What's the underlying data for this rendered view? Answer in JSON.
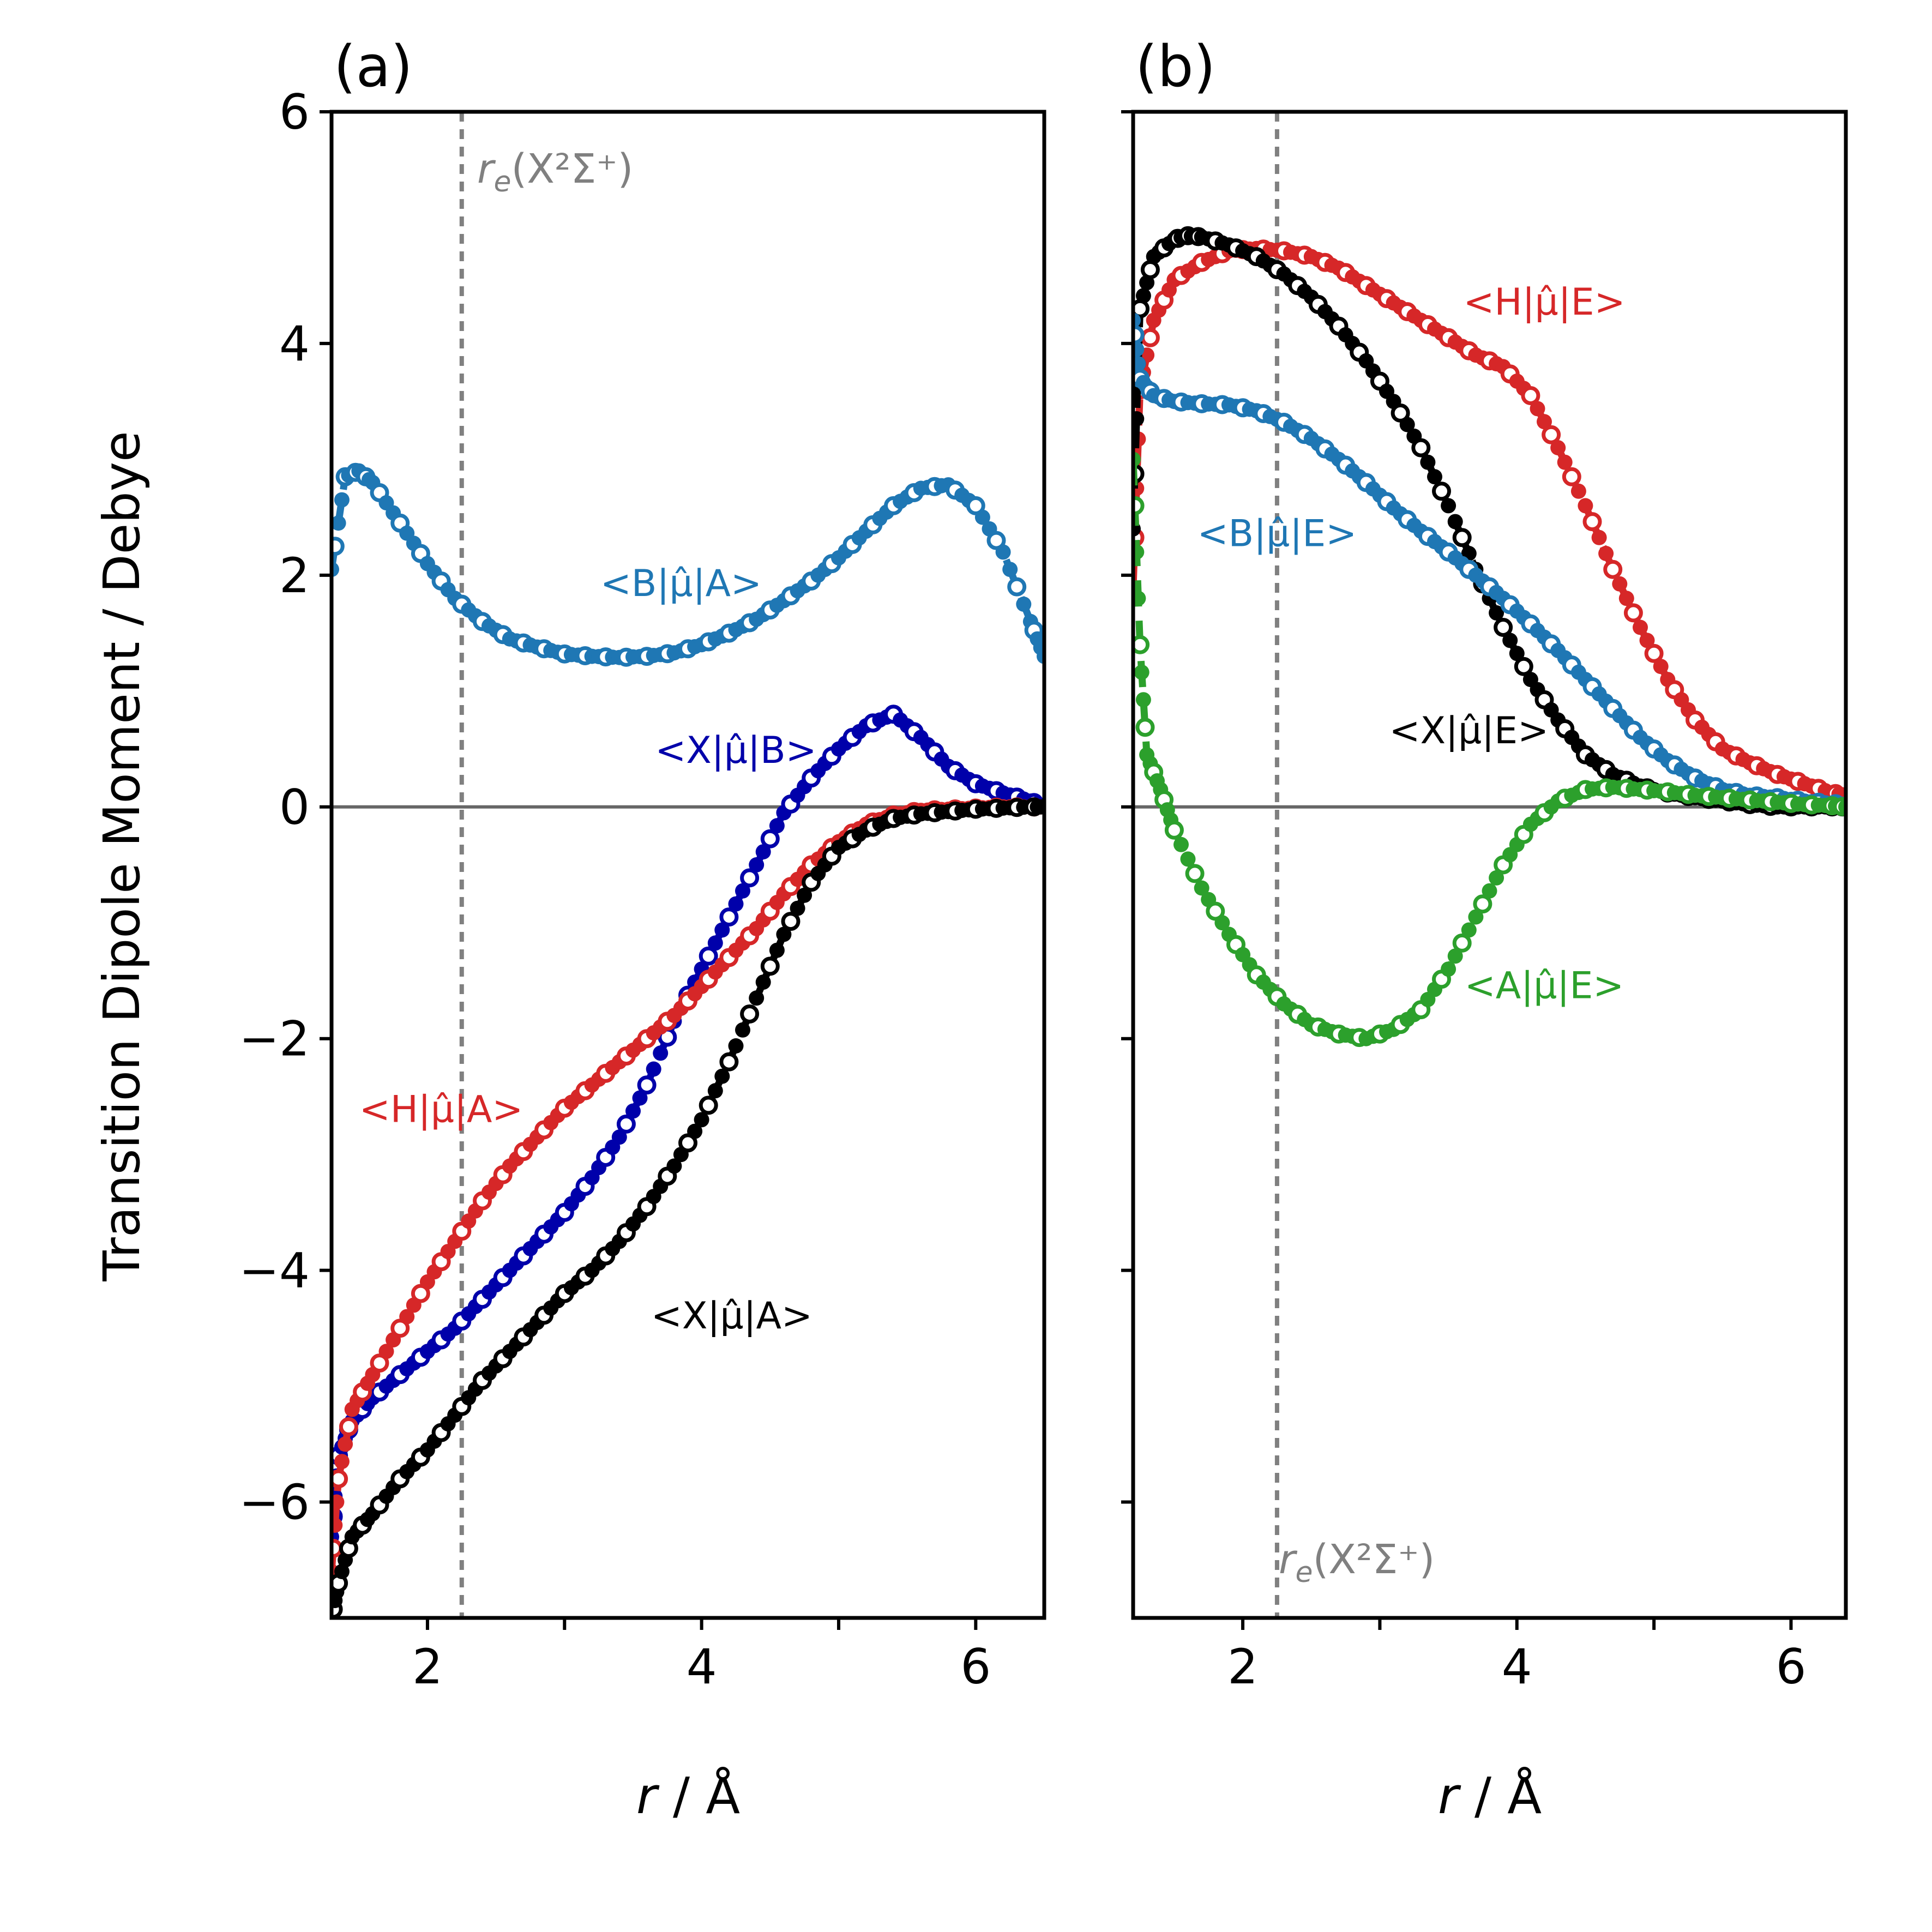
{
  "figure": {
    "ylabel": "Transition Dipole Moment / Debye",
    "y_ticks": [
      "6",
      "4",
      "2",
      "0",
      "−2",
      "−4",
      "−6"
    ],
    "x_ticks": [
      "2",
      "4",
      "6"
    ]
  },
  "chart_data": [
    {
      "type": "line",
      "panel": "(a)",
      "xlabel_var": "r",
      "xlabel_unit": " / Å",
      "xlim": [
        1.3,
        6.5
      ],
      "ylim": [
        -7.0,
        6.0
      ],
      "x_ticks": [
        2,
        3,
        4,
        5,
        6
      ],
      "y_ticks": [
        6,
        4,
        2,
        0,
        -2,
        -4,
        -6
      ],
      "zero_line": 0,
      "re_line_x": 2.25,
      "re_label": {
        "r": "r",
        "sub": "e",
        "text": "(X²Σ⁺)"
      },
      "series": [
        {
          "name": "<B|μ̂|A>",
          "color": "#1f77b4",
          "label_pos": [
            3.85,
            1.82
          ],
          "x": [
            1.3,
            1.4,
            1.5,
            1.6,
            1.8,
            2.0,
            2.2,
            2.4,
            2.6,
            2.8,
            3.0,
            3.2,
            3.4,
            3.6,
            3.8,
            4.0,
            4.2,
            4.4,
            4.6,
            4.8,
            5.0,
            5.2,
            5.4,
            5.6,
            5.8,
            6.0,
            6.2,
            6.4,
            6.5
          ],
          "values": [
            2.05,
            2.85,
            2.9,
            2.8,
            2.45,
            2.1,
            1.8,
            1.6,
            1.45,
            1.38,
            1.32,
            1.3,
            1.29,
            1.3,
            1.33,
            1.4,
            1.5,
            1.62,
            1.78,
            1.95,
            2.15,
            2.38,
            2.6,
            2.75,
            2.78,
            2.6,
            2.2,
            1.6,
            1.3
          ]
        },
        {
          "name": "<X|μ̂|B>",
          "color": "#0000aa",
          "label_pos": [
            4.25,
            0.38
          ],
          "x": [
            1.3,
            1.35,
            1.45,
            1.6,
            1.8,
            2.0,
            2.2,
            2.4,
            2.6,
            2.8,
            3.0,
            3.2,
            3.4,
            3.6,
            3.8,
            4.0,
            4.2,
            4.4,
            4.6,
            4.8,
            5.0,
            5.2,
            5.4,
            5.6,
            5.8,
            6.0,
            6.2,
            6.4,
            6.5
          ],
          "values": [
            -6.3,
            -5.6,
            -5.3,
            -5.1,
            -4.9,
            -4.7,
            -4.5,
            -4.25,
            -4.0,
            -3.75,
            -3.5,
            -3.2,
            -2.85,
            -2.4,
            -1.85,
            -1.4,
            -0.95,
            -0.5,
            -0.05,
            0.25,
            0.5,
            0.7,
            0.8,
            0.6,
            0.35,
            0.2,
            0.12,
            0.05,
            0.0
          ]
        },
        {
          "name": "<H|μ̂|A>",
          "color": "#d62728",
          "label_pos": [
            2.1,
            -2.72
          ],
          "x": [
            1.3,
            1.35,
            1.45,
            1.6,
            1.8,
            2.0,
            2.2,
            2.4,
            2.6,
            2.8,
            3.0,
            3.2,
            3.4,
            3.6,
            3.8,
            4.0,
            4.2,
            4.4,
            4.6,
            4.8,
            5.0,
            5.2,
            5.4,
            5.6,
            5.8,
            6.0,
            6.2,
            6.4,
            6.5
          ],
          "values": [
            -6.6,
            -5.8,
            -5.2,
            -4.9,
            -4.5,
            -4.1,
            -3.75,
            -3.4,
            -3.1,
            -2.85,
            -2.6,
            -2.4,
            -2.2,
            -2.0,
            -1.8,
            -1.55,
            -1.3,
            -1.05,
            -0.75,
            -0.5,
            -0.3,
            -0.15,
            -0.07,
            -0.03,
            -0.02,
            -0.01,
            0.0,
            0.0,
            0.0
          ]
        },
        {
          "name": "<X|μ̂|A>",
          "color": "#000000",
          "label_pos": [
            4.22,
            -4.5
          ],
          "x": [
            1.3,
            1.35,
            1.45,
            1.6,
            1.8,
            2.0,
            2.2,
            2.4,
            2.6,
            2.8,
            3.0,
            3.2,
            3.4,
            3.6,
            3.8,
            4.0,
            4.2,
            4.4,
            4.6,
            4.8,
            5.0,
            5.2,
            5.4,
            5.6,
            5.8,
            6.0,
            6.2,
            6.4,
            6.5
          ],
          "values": [
            -7.0,
            -6.7,
            -6.3,
            -6.1,
            -5.8,
            -5.55,
            -5.25,
            -4.95,
            -4.7,
            -4.45,
            -4.2,
            -4.0,
            -3.75,
            -3.45,
            -3.1,
            -2.7,
            -2.2,
            -1.65,
            -1.1,
            -0.65,
            -0.35,
            -0.2,
            -0.1,
            -0.06,
            -0.04,
            -0.02,
            -0.01,
            0.0,
            0.0
          ]
        }
      ]
    },
    {
      "type": "line",
      "panel": "(b)",
      "xlabel_var": "r",
      "xlabel_unit": " / Å",
      "xlim": [
        1.2,
        6.4
      ],
      "ylim": [
        -7.0,
        6.0
      ],
      "x_ticks": [
        2,
        3,
        4,
        5,
        6
      ],
      "y_ticks": [
        6,
        4,
        2,
        0,
        -2,
        -4,
        -6
      ],
      "zero_line": 0,
      "re_line_x": 2.25,
      "re_label": {
        "r": "r",
        "sub": "e",
        "text": "(X²Σ⁺)"
      },
      "series": [
        {
          "name": "<H|μ̂|E>",
          "color": "#d62728",
          "label_pos": [
            4.2,
            4.25
          ],
          "x": [
            1.2,
            1.25,
            1.35,
            1.5,
            1.7,
            1.9,
            2.1,
            2.3,
            2.5,
            2.7,
            2.9,
            3.1,
            3.3,
            3.5,
            3.7,
            3.9,
            4.1,
            4.3,
            4.5,
            4.7,
            4.9,
            5.1,
            5.3,
            5.5,
            5.7,
            5.9,
            6.1,
            6.3,
            6.4
          ],
          "values": [
            1.9,
            3.6,
            4.2,
            4.55,
            4.7,
            4.8,
            4.82,
            4.8,
            4.75,
            4.65,
            4.5,
            4.35,
            4.2,
            4.05,
            3.9,
            3.8,
            3.55,
            3.1,
            2.6,
            2.05,
            1.55,
            1.1,
            0.75,
            0.5,
            0.38,
            0.28,
            0.2,
            0.12,
            0.1
          ]
        },
        {
          "name": "<X|μ̂|E>",
          "color": "#000000",
          "label_pos": [
            3.65,
            0.55
          ],
          "x": [
            1.2,
            1.25,
            1.35,
            1.5,
            1.6,
            1.7,
            1.9,
            2.1,
            2.3,
            2.5,
            2.7,
            2.9,
            3.1,
            3.3,
            3.5,
            3.7,
            3.9,
            4.1,
            4.3,
            4.5,
            4.7,
            4.9,
            5.1,
            5.3,
            5.5,
            5.7,
            5.9,
            6.1,
            6.3,
            6.4
          ],
          "values": [
            2.4,
            4.3,
            4.75,
            4.9,
            4.93,
            4.92,
            4.85,
            4.75,
            4.6,
            4.4,
            4.15,
            3.85,
            3.5,
            3.1,
            2.6,
            2.05,
            1.55,
            1.1,
            0.75,
            0.45,
            0.28,
            0.18,
            0.12,
            0.08,
            0.05,
            0.02,
            0.0,
            0.0,
            0.0,
            0.0
          ]
        },
        {
          "name": "<B|μ̂|E>",
          "color": "#1f77b4",
          "label_pos": [
            2.25,
            2.25
          ],
          "x": [
            1.2,
            1.25,
            1.35,
            1.5,
            1.7,
            1.9,
            2.1,
            2.3,
            2.5,
            2.7,
            2.9,
            3.1,
            3.3,
            3.5,
            3.7,
            3.9,
            4.1,
            4.3,
            4.5,
            4.7,
            4.9,
            5.1,
            5.3,
            5.5,
            5.7,
            5.9,
            6.1,
            6.3,
            6.4
          ],
          "values": [
            4.2,
            3.7,
            3.55,
            3.5,
            3.48,
            3.47,
            3.42,
            3.32,
            3.18,
            3.0,
            2.8,
            2.58,
            2.38,
            2.2,
            2.0,
            1.8,
            1.58,
            1.35,
            1.1,
            0.85,
            0.6,
            0.4,
            0.25,
            0.15,
            0.1,
            0.08,
            0.05,
            0.03,
            0.02
          ]
        },
        {
          "name": "<A|μ̂|E>",
          "color": "#2ca02c",
          "label_pos": [
            4.2,
            -1.65
          ],
          "x": [
            1.2,
            1.25,
            1.3,
            1.4,
            1.5,
            1.7,
            1.9,
            2.1,
            2.3,
            2.5,
            2.7,
            2.9,
            3.1,
            3.3,
            3.5,
            3.7,
            3.9,
            4.1,
            4.3,
            4.5,
            4.7,
            4.9,
            5.1,
            5.3,
            5.5,
            5.7,
            5.9,
            6.1,
            6.3,
            6.4
          ],
          "values": [
            3.0,
            1.4,
            0.45,
            0.15,
            -0.2,
            -0.7,
            -1.1,
            -1.45,
            -1.7,
            -1.88,
            -1.96,
            -2.0,
            -1.92,
            -1.75,
            -1.4,
            -0.95,
            -0.5,
            -0.15,
            0.05,
            0.15,
            0.17,
            0.15,
            0.13,
            0.1,
            0.08,
            0.06,
            0.04,
            0.02,
            0.01,
            0.0
          ]
        }
      ]
    }
  ]
}
